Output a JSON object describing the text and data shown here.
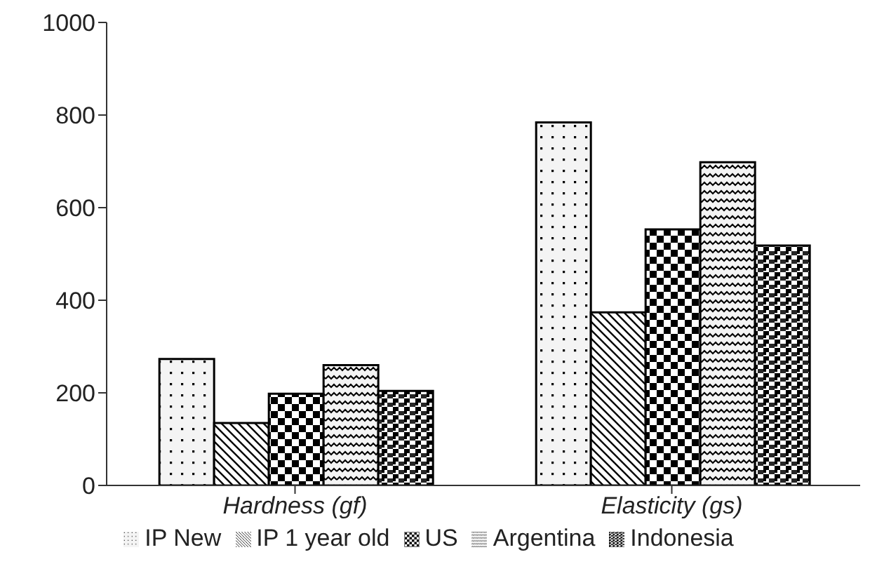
{
  "chart_data": {
    "type": "bar",
    "categories": [
      "Hardness (gf)",
      "Elasticity (gs)"
    ],
    "series": [
      {
        "name": "IP New",
        "color": "#000000",
        "values": [
          273,
          784
        ]
      },
      {
        "name": "IP 1 year old",
        "color": "#000000",
        "values": [
          135,
          374
        ]
      },
      {
        "name": "US",
        "color": "#000000",
        "values": [
          198,
          553
        ]
      },
      {
        "name": "Argentina",
        "color": "#000000",
        "values": [
          260,
          698
        ]
      },
      {
        "name": "Indonesia",
        "color": "#000000",
        "values": [
          204,
          518
        ]
      }
    ],
    "ylim": [
      0,
      1000
    ],
    "yticks": [
      0,
      200,
      400,
      600,
      800,
      1000
    ],
    "grid": false,
    "legend": "bottom"
  }
}
